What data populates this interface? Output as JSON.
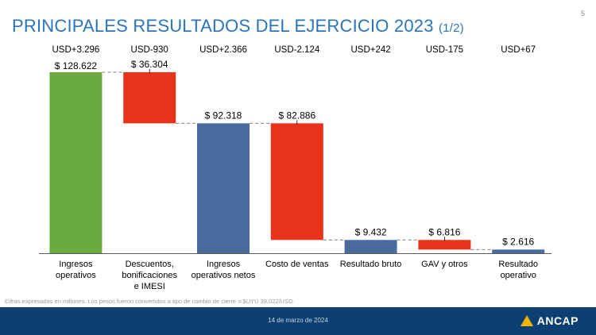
{
  "page": {
    "number": "5",
    "title": "PRINCIPALES RESULTADOS DEL EJERCICIO 2023",
    "title_suffix": "(1/2)",
    "footnote": "Cifras expresadas en millones. Los pesos fueron convertidos a tipo de cambio de cierre = $UYU 39,022/USD.",
    "footer_date": "14 de marzo de 2024",
    "logo_text": "ANCAP"
  },
  "colors": {
    "title": "#2b74b8",
    "total_green": "#6aaa3f",
    "decrease_red": "#e8321a",
    "subtotal_blue": "#4a6b9e",
    "footer_bg": "#0d3f73",
    "logo_mark": "#f3b400"
  },
  "chart_data": {
    "type": "bar",
    "subtype": "waterfall",
    "ylim": [
      0,
      135000
    ],
    "categories": [
      [
        "Ingresos",
        "operativos"
      ],
      [
        "Descuentos,",
        "bonificaciones",
        "e IMESI"
      ],
      [
        "Ingresos",
        "operativos netos"
      ],
      [
        "Costo de ventas"
      ],
      [
        "Resultado bruto"
      ],
      [
        "GAV y otros"
      ],
      [
        "Resultado",
        "operativo"
      ]
    ],
    "bars": [
      {
        "kind": "total",
        "value": 128622,
        "base": 0,
        "label": "$ 128.622",
        "usd": "USD+3.296"
      },
      {
        "kind": "decrease",
        "value": 36304,
        "base": 92318,
        "label": "$ 36.304",
        "usd": "USD-930"
      },
      {
        "kind": "subtotal",
        "value": 92318,
        "base": 0,
        "label": "$ 92.318",
        "usd": "USD+2.366"
      },
      {
        "kind": "decrease",
        "value": 82886,
        "base": 9432,
        "label": "$ 82.886",
        "usd": "USD-2.124"
      },
      {
        "kind": "subtotal",
        "value": 9432,
        "base": 0,
        "label": "$ 9.432",
        "usd": "USD+242"
      },
      {
        "kind": "decrease",
        "value": 6816,
        "base": 2616,
        "label": "$ 6.816",
        "usd": "USD-175"
      },
      {
        "kind": "subtotal",
        "value": 2616,
        "base": 0,
        "label": "$ 2.616",
        "usd": "USD+67"
      }
    ],
    "legend": "none",
    "grid": false
  }
}
